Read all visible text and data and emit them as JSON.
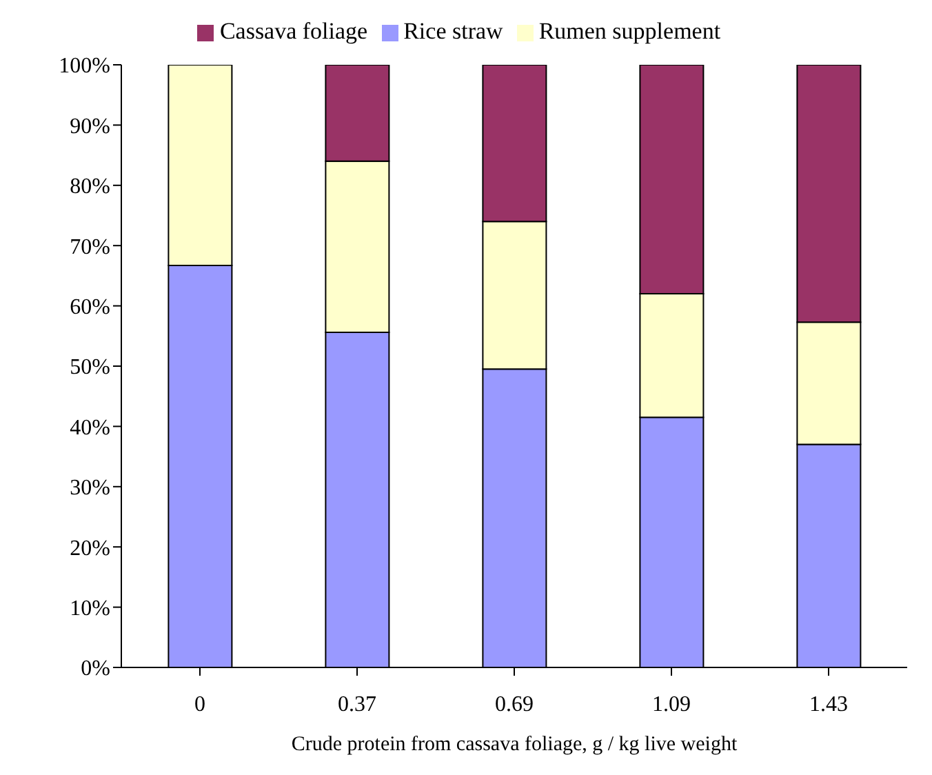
{
  "chart_data": {
    "type": "bar",
    "stacked": true,
    "xlabel": "Crude protein from cassava foliage, g / kg live weight",
    "categories": [
      "0",
      "0.37",
      "0.69",
      "1.09",
      "1.43"
    ],
    "series": [
      {
        "name": "Rice straw",
        "color": "#9999ff",
        "values": [
          66.7,
          55.6,
          49.5,
          41.5,
          37
        ]
      },
      {
        "name": "Rumen supplement",
        "color": "#ffffcc",
        "values": [
          33.3,
          28.4,
          24.5,
          20.5,
          20.3
        ]
      },
      {
        "name": "Cassava foliage",
        "color": "#993366",
        "values": [
          0,
          16,
          26,
          38,
          42.7
        ]
      }
    ],
    "ylim": [
      0,
      100
    ],
    "yticks": [
      {
        "value": 0,
        "label": "0%"
      },
      {
        "value": 10,
        "label": "10%"
      },
      {
        "value": 20,
        "label": "20%"
      },
      {
        "value": 30,
        "label": "30%"
      },
      {
        "value": 40,
        "label": "40%"
      },
      {
        "value": 50,
        "label": "50%"
      },
      {
        "value": 60,
        "label": "60%"
      },
      {
        "value": 70,
        "label": "70%"
      },
      {
        "value": 80,
        "label": "80%"
      },
      {
        "value": 90,
        "label": "90%"
      },
      {
        "value": 100,
        "label": "100%"
      }
    ],
    "grid": false,
    "legend": "top"
  }
}
